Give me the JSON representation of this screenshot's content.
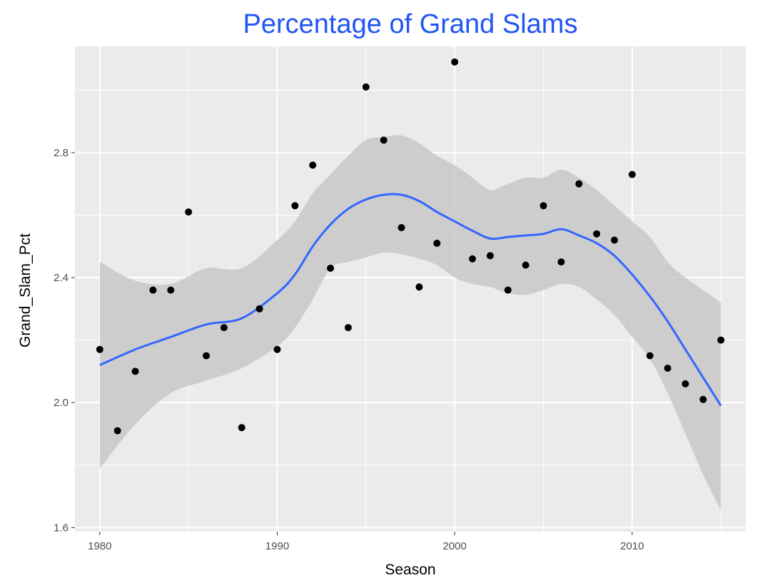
{
  "chart_data": {
    "type": "scatter",
    "title": "Percentage of Grand Slams",
    "xlabel": "Season",
    "ylabel": "Grand_Slam_Pct",
    "xlim": [
      1978.6,
      2016.4
    ],
    "ylim": [
      1.587,
      3.14
    ],
    "x_ticks": [
      1980,
      1990,
      2000,
      2010
    ],
    "y_ticks": [
      1.6,
      2.0,
      2.4,
      2.8
    ],
    "x_tick_labels": [
      "1980",
      "1990",
      "2000",
      "2010"
    ],
    "y_tick_labels": [
      "1.6",
      "2.0",
      "2.4",
      "2.8"
    ],
    "grid": true,
    "legend": "none",
    "colors": {
      "panel": "#ebebeb",
      "grid": "#ffffff",
      "points": "#000000",
      "smooth_line": "#3366ff",
      "confidence_band": "#c8c8c8",
      "title": "#2155f5"
    },
    "points": {
      "x": [
        1980,
        1981,
        1982,
        1983,
        1984,
        1985,
        1986,
        1987,
        1988,
        1989,
        1990,
        1991,
        1992,
        1993,
        1994,
        1995,
        1996,
        1997,
        1998,
        1999,
        2000,
        2001,
        2002,
        2003,
        2004,
        2005,
        2006,
        2007,
        2008,
        2009,
        2010,
        2011,
        2012,
        2013,
        2014,
        2015
      ],
      "y": [
        2.17,
        1.91,
        2.1,
        2.36,
        2.36,
        2.61,
        2.15,
        2.24,
        1.92,
        2.3,
        2.17,
        2.63,
        2.76,
        2.43,
        2.24,
        3.01,
        2.84,
        2.56,
        2.37,
        2.51,
        3.09,
        2.46,
        2.47,
        2.36,
        2.44,
        2.63,
        2.45,
        2.7,
        2.54,
        2.52,
        2.73,
        2.15,
        2.11,
        2.06,
        2.01,
        2.2
      ]
    },
    "smooth": {
      "x": [
        1980,
        1982,
        1984,
        1986,
        1988,
        1990,
        1991,
        1992,
        1993,
        1994,
        1995,
        1996,
        1997,
        1998,
        1999,
        2000,
        2001,
        2002,
        2003,
        2004,
        2005,
        2006,
        2007,
        2008,
        2009,
        2010,
        2011,
        2012,
        2013,
        2014,
        2015
      ],
      "y": [
        2.12,
        2.17,
        2.21,
        2.25,
        2.27,
        2.35,
        2.41,
        2.5,
        2.57,
        2.62,
        2.65,
        2.665,
        2.665,
        2.645,
        2.61,
        2.58,
        2.55,
        2.525,
        2.53,
        2.535,
        2.54,
        2.555,
        2.535,
        2.51,
        2.47,
        2.41,
        2.34,
        2.26,
        2.17,
        2.08,
        1.99
      ],
      "lower": [
        1.79,
        1.93,
        2.03,
        2.07,
        2.11,
        2.18,
        2.24,
        2.33,
        2.43,
        2.45,
        2.465,
        2.48,
        2.475,
        2.46,
        2.44,
        2.4,
        2.38,
        2.37,
        2.35,
        2.345,
        2.36,
        2.38,
        2.37,
        2.33,
        2.28,
        2.21,
        2.14,
        2.03,
        1.9,
        1.77,
        1.655
      ],
      "upper": [
        2.45,
        2.39,
        2.38,
        2.43,
        2.43,
        2.52,
        2.58,
        2.67,
        2.73,
        2.79,
        2.84,
        2.85,
        2.855,
        2.83,
        2.79,
        2.76,
        2.72,
        2.68,
        2.7,
        2.72,
        2.72,
        2.745,
        2.72,
        2.68,
        2.63,
        2.58,
        2.53,
        2.45,
        2.4,
        2.36,
        2.32
      ]
    }
  }
}
